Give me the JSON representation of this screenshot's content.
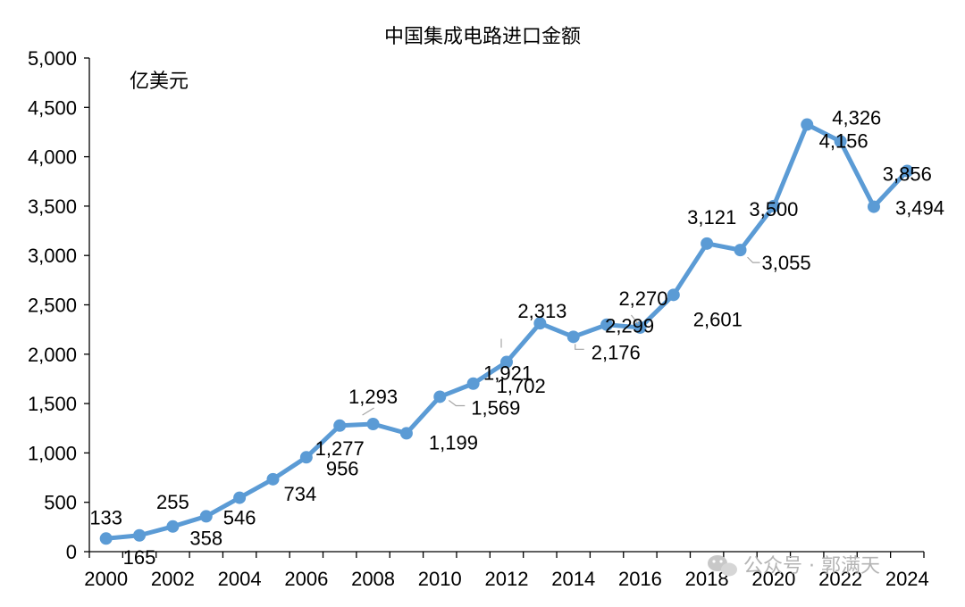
{
  "chart_data": {
    "type": "line",
    "title": "中国集成电路进口金额",
    "unit_label": "亿美元",
    "xlabel": "",
    "ylabel": "",
    "ylim": [
      0,
      5000
    ],
    "y_ticks": [
      "0",
      "500",
      "1,000",
      "1,500",
      "2,000",
      "2,500",
      "3,000",
      "3,500",
      "4,000",
      "4,500",
      "5,000"
    ],
    "x": [
      2000,
      2001,
      2002,
      2003,
      2004,
      2005,
      2006,
      2007,
      2008,
      2009,
      2010,
      2011,
      2012,
      2013,
      2014,
      2015,
      2016,
      2017,
      2018,
      2019,
      2020,
      2021,
      2022,
      2023,
      2024
    ],
    "x_tick_labels": [
      "2000",
      "2002",
      "2004",
      "2006",
      "2008",
      "2010",
      "2012",
      "2014",
      "2016",
      "2018",
      "2020",
      "2022",
      "2024"
    ],
    "series": [
      {
        "values": [
          133,
          165,
          255,
          358,
          546,
          734,
          956,
          1277,
          1293,
          1199,
          1569,
          1702,
          1921,
          2313,
          2176,
          2299,
          2270,
          2601,
          3121,
          3055,
          3500,
          4326,
          4156,
          3494,
          3856
        ],
        "labels": [
          "133",
          "165",
          "255",
          "358",
          "546",
          "734",
          "956",
          "1,277",
          "1,293",
          "1,199",
          "1,569",
          "1,702",
          "1,921",
          "2,313",
          "2,176",
          "2,299",
          "2,270",
          "2,601",
          "3,121",
          "3,055",
          "3,500",
          "4,326",
          "4,156",
          "3,494",
          "3,856"
        ],
        "color": "#5b9bd5"
      }
    ],
    "grid": false,
    "legend": "none"
  },
  "watermark": "公众号 · 郭满天"
}
